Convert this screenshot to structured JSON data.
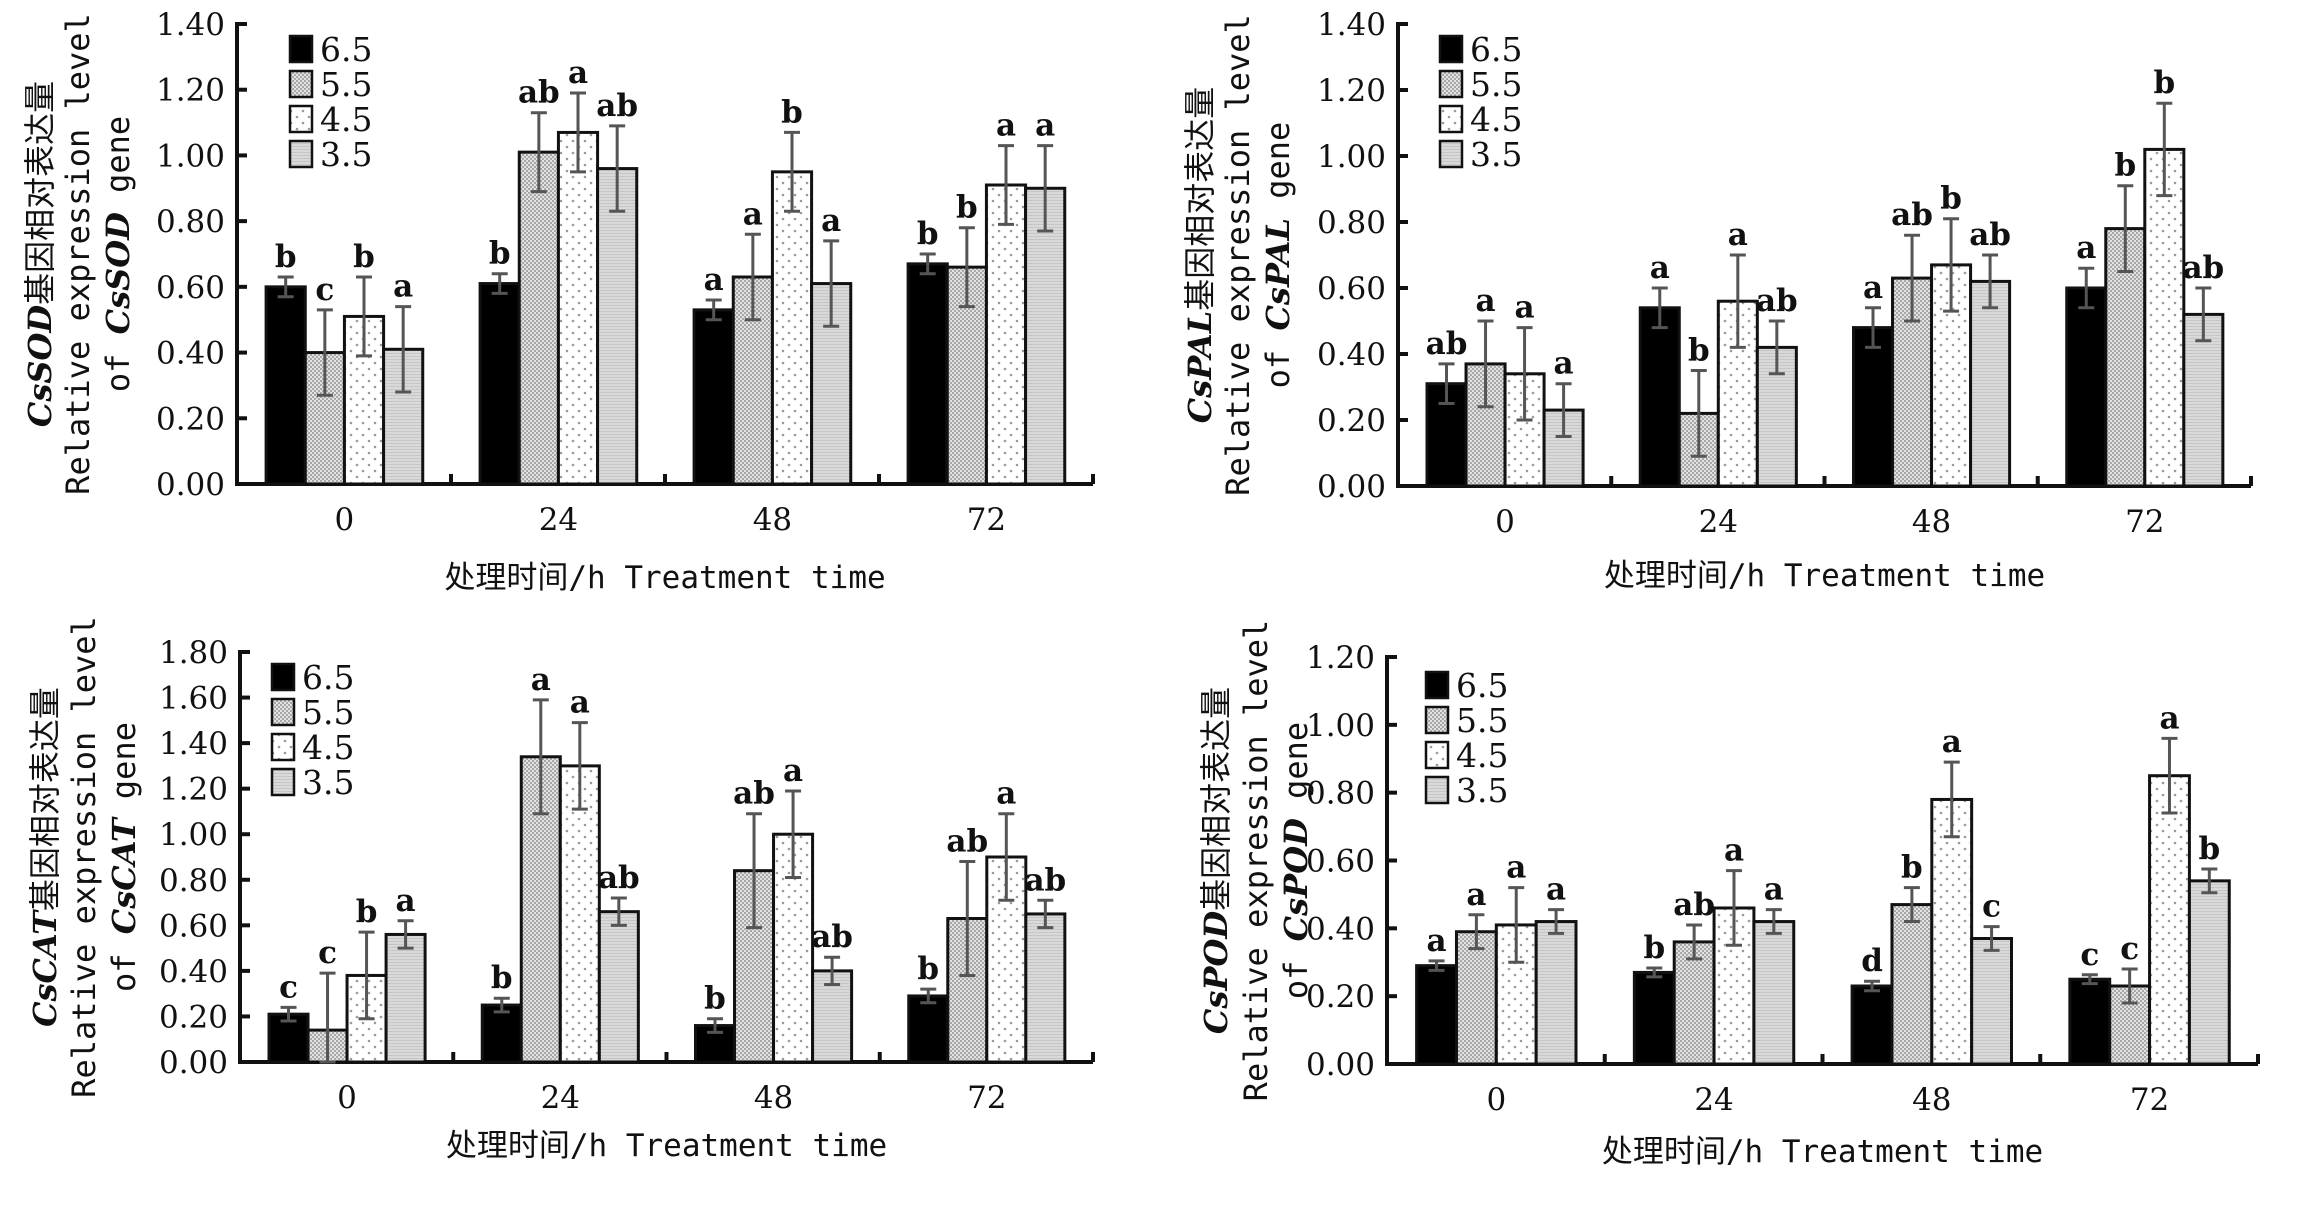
{
  "figure": {
    "legend_entries": [
      "6.5",
      "5.5",
      "4.5",
      "3.5"
    ],
    "xlabel": "处理时间/h Treatment time"
  },
  "series_styles": {
    "6.5": {
      "fill": "#000000",
      "pattern": "solid"
    },
    "5.5": {
      "fill": "#c4c4c4",
      "pattern": "crosshatch"
    },
    "4.5": {
      "fill": "#ffffff",
      "pattern": "dots"
    },
    "3.5": {
      "fill": "#d6d6d6",
      "pattern": "hlines"
    }
  },
  "chart_data": [
    {
      "id": "sod",
      "type": "bar",
      "title": "",
      "gene": "CsSOD",
      "ylabel_lines": [
        {
          "italic": "CsSOD",
          "rest": "基因相对表达量"
        },
        {
          "italic": "",
          "rest": "Relative expression level"
        },
        {
          "prefix": "of ",
          "italic": "CsSOD",
          "rest": " gene"
        }
      ],
      "xlabel": "处理时间/h Treatment time",
      "categories": [
        "0",
        "24",
        "48",
        "72"
      ],
      "ylim": [
        0,
        1.4
      ],
      "yticks": [
        "0.00",
        "0.20",
        "0.40",
        "0.60",
        "0.80",
        "1.00",
        "1.20",
        "1.40"
      ],
      "ytick_values": [
        0,
        0.2,
        0.4,
        0.6,
        0.8,
        1.0,
        1.2,
        1.4
      ],
      "legend": "top-left",
      "grid": false,
      "series": [
        {
          "name": "6.5",
          "values": [
            0.6,
            0.61,
            0.53,
            0.67
          ],
          "errors": [
            0.03,
            0.03,
            0.03,
            0.03
          ],
          "letters": [
            "b",
            "b",
            "a",
            "b"
          ]
        },
        {
          "name": "5.5",
          "values": [
            0.4,
            1.01,
            0.63,
            0.66
          ],
          "errors": [
            0.13,
            0.12,
            0.13,
            0.12
          ],
          "letters": [
            "c",
            "ab",
            "a",
            "b"
          ]
        },
        {
          "name": "4.5",
          "values": [
            0.51,
            1.07,
            0.95,
            0.91
          ],
          "errors": [
            0.12,
            0.12,
            0.12,
            0.12
          ],
          "letters": [
            "b",
            "a",
            "b",
            "a"
          ]
        },
        {
          "name": "3.5",
          "values": [
            0.41,
            0.96,
            0.61,
            0.9
          ],
          "errors": [
            0.13,
            0.13,
            0.13,
            0.13
          ],
          "letters": [
            "a",
            "ab",
            "a",
            "a"
          ]
        }
      ]
    },
    {
      "id": "pal",
      "type": "bar",
      "title": "",
      "gene": "CsPAL",
      "ylabel_lines": [
        {
          "italic": "CsPAL",
          "rest": "基因相对表达量"
        },
        {
          "italic": "",
          "rest": "Relative expression level"
        },
        {
          "prefix": "of ",
          "italic": "CsPAL",
          "rest": " gene"
        }
      ],
      "xlabel": "处理时间/h Treatment time",
      "categories": [
        "0",
        "24",
        "48",
        "72"
      ],
      "ylim": [
        0,
        1.4
      ],
      "yticks": [
        "0.00",
        "0.20",
        "0.40",
        "0.60",
        "0.80",
        "1.00",
        "1.20",
        "1.40"
      ],
      "ytick_values": [
        0,
        0.2,
        0.4,
        0.6,
        0.8,
        1.0,
        1.2,
        1.4
      ],
      "legend": "top-left",
      "grid": false,
      "series": [
        {
          "name": "6.5",
          "values": [
            0.31,
            0.54,
            0.48,
            0.6
          ],
          "errors": [
            0.06,
            0.06,
            0.06,
            0.06
          ],
          "letters": [
            "ab",
            "a",
            "a",
            "a"
          ]
        },
        {
          "name": "5.5",
          "values": [
            0.37,
            0.22,
            0.63,
            0.78
          ],
          "errors": [
            0.13,
            0.13,
            0.13,
            0.13
          ],
          "letters": [
            "a",
            "b",
            "ab",
            "b"
          ]
        },
        {
          "name": "4.5",
          "values": [
            0.34,
            0.56,
            0.67,
            1.02
          ],
          "errors": [
            0.14,
            0.14,
            0.14,
            0.14
          ],
          "letters": [
            "a",
            "a",
            "b",
            "b"
          ]
        },
        {
          "name": "3.5",
          "values": [
            0.23,
            0.42,
            0.62,
            0.52
          ],
          "errors": [
            0.08,
            0.08,
            0.08,
            0.08
          ],
          "letters": [
            "a",
            "ab",
            "ab",
            "ab"
          ]
        }
      ]
    },
    {
      "id": "cat",
      "type": "bar",
      "title": "",
      "gene": "CsCAT",
      "ylabel_lines": [
        {
          "italic": "CsCAT",
          "rest": "基因相对表达量"
        },
        {
          "italic": "",
          "rest": "Relative expression level"
        },
        {
          "prefix": "of ",
          "italic": "CsCAT",
          "rest": " gene"
        }
      ],
      "xlabel": "处理时间/h Treatment time",
      "categories": [
        "0",
        "24",
        "48",
        "72"
      ],
      "ylim": [
        0,
        1.8
      ],
      "yticks": [
        "0.00",
        "0.20",
        "0.40",
        "0.60",
        "0.80",
        "1.00",
        "1.20",
        "1.40",
        "1.60",
        "1.80"
      ],
      "ytick_values": [
        0,
        0.2,
        0.4,
        0.6,
        0.8,
        1.0,
        1.2,
        1.4,
        1.6,
        1.8
      ],
      "legend": "top-left",
      "grid": false,
      "series": [
        {
          "name": "6.5",
          "values": [
            0.21,
            0.25,
            0.16,
            0.29
          ],
          "errors": [
            0.03,
            0.03,
            0.03,
            0.03
          ],
          "letters": [
            "c",
            "b",
            "b",
            "b"
          ]
        },
        {
          "name": "5.5",
          "values": [
            0.14,
            1.34,
            0.84,
            0.63
          ],
          "errors": [
            0.25,
            0.25,
            0.25,
            0.25
          ],
          "letters": [
            "c",
            "a",
            "ab",
            "ab"
          ]
        },
        {
          "name": "4.5",
          "values": [
            0.38,
            1.3,
            1.0,
            0.9
          ],
          "errors": [
            0.19,
            0.19,
            0.19,
            0.19
          ],
          "letters": [
            "b",
            "a",
            "a",
            "a"
          ]
        },
        {
          "name": "3.5",
          "values": [
            0.56,
            0.66,
            0.4,
            0.65
          ],
          "errors": [
            0.06,
            0.06,
            0.06,
            0.06
          ],
          "letters": [
            "a",
            "ab",
            "ab",
            "ab"
          ]
        }
      ]
    },
    {
      "id": "pod",
      "type": "bar",
      "title": "",
      "gene": "CsPOD",
      "ylabel_lines": [
        {
          "italic": "CsPOD",
          "rest": "基因相对表达量"
        },
        {
          "italic": "",
          "rest": "Relative expression level"
        },
        {
          "prefix": "of ",
          "italic": "CsPOD",
          "rest": " gene"
        }
      ],
      "xlabel": "处理时间/h Treatment time",
      "categories": [
        "0",
        "24",
        "48",
        "72"
      ],
      "ylim": [
        0,
        1.2
      ],
      "yticks": [
        "0.00",
        "0.20",
        "0.40",
        "0.60",
        "0.80",
        "1.00",
        "1.20"
      ],
      "ytick_values": [
        0,
        0.2,
        0.4,
        0.6,
        0.8,
        1.0,
        1.2
      ],
      "legend": "top-left",
      "grid": false,
      "series": [
        {
          "name": "6.5",
          "values": [
            0.29,
            0.27,
            0.23,
            0.25
          ],
          "errors": [
            0.014,
            0.013,
            0.014,
            0.013
          ],
          "letters": [
            "a",
            "b",
            "d",
            "c"
          ]
        },
        {
          "name": "5.5",
          "values": [
            0.39,
            0.36,
            0.47,
            0.23
          ],
          "errors": [
            0.05,
            0.05,
            0.05,
            0.05
          ],
          "letters": [
            "a",
            "ab",
            "b",
            "c"
          ]
        },
        {
          "name": "4.5",
          "values": [
            0.41,
            0.46,
            0.78,
            0.85
          ],
          "errors": [
            0.11,
            0.11,
            0.11,
            0.11
          ],
          "letters": [
            "a",
            "a",
            "a",
            "a"
          ]
        },
        {
          "name": "3.5",
          "values": [
            0.42,
            0.42,
            0.37,
            0.54
          ],
          "errors": [
            0.035,
            0.035,
            0.035,
            0.035
          ],
          "letters": [
            "a",
            "a",
            "c",
            "b"
          ]
        }
      ]
    }
  ]
}
